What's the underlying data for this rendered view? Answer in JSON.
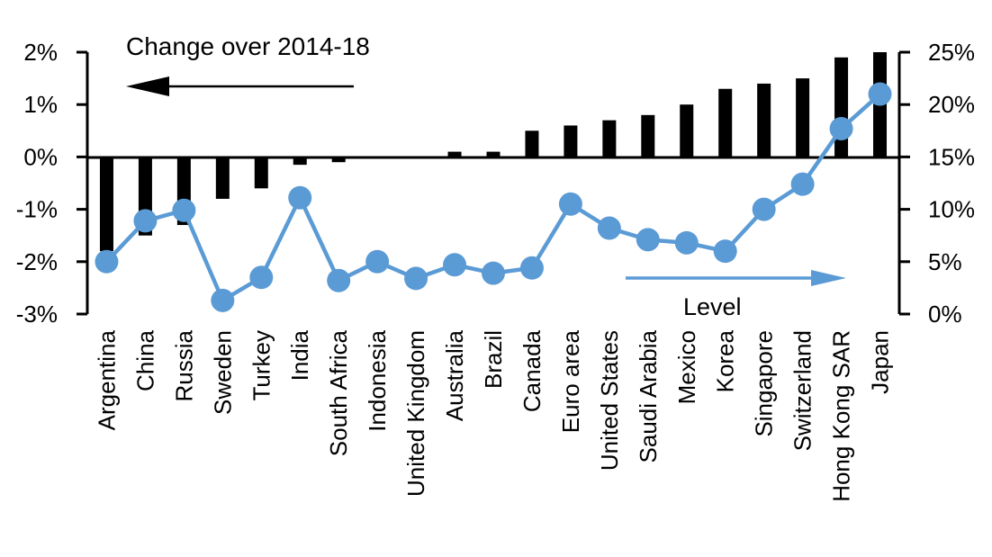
{
  "chart_data": {
    "type": "bar",
    "subtype": "dual-axis bar + line",
    "categories": [
      "Argentina",
      "China",
      "Russia",
      "Sweden",
      "Turkey",
      "India",
      "South Africa",
      "Indonesia",
      "United Kingdom",
      "Australia",
      "Brazil",
      "Canada",
      "Euro area",
      "United States",
      "Saudi Arabia",
      "Mexico",
      "Korea",
      "Singapore",
      "Switzerland",
      "Hong Kong SAR",
      "Japan"
    ],
    "series": [
      {
        "name": "Change over 2014-18",
        "type": "bar",
        "axis": "left",
        "color": "#000000",
        "values": [
          -1.8,
          -1.5,
          -1.3,
          -0.8,
          -0.6,
          -0.15,
          -0.1,
          0,
          0,
          0.1,
          0.1,
          0.5,
          0.6,
          0.7,
          0.8,
          1.0,
          1.3,
          1.4,
          1.5,
          1.9,
          2.0
        ]
      },
      {
        "name": "Level",
        "type": "line",
        "axis": "right",
        "color": "#5B9BD5",
        "values": [
          5.0,
          8.9,
          9.9,
          1.3,
          3.5,
          11.1,
          3.2,
          5.0,
          3.4,
          4.7,
          3.9,
          4.4,
          10.5,
          8.2,
          7.1,
          6.8,
          6.0,
          10.0,
          12.4,
          17.7,
          21.0
        ]
      }
    ],
    "left_axis": {
      "tick_labels": [
        "2%",
        "1%",
        "0%",
        "-1%",
        "-2%",
        "-3%"
      ],
      "tick_values": [
        2,
        1,
        0,
        -1,
        -2,
        -3
      ],
      "range": [
        -3,
        2
      ]
    },
    "right_axis": {
      "tick_labels": [
        "25%",
        "20%",
        "15%",
        "10%",
        "5%",
        "0%"
      ],
      "tick_values": [
        25,
        20,
        15,
        10,
        5,
        0
      ],
      "range": [
        0,
        25
      ]
    },
    "annotations": {
      "change_label": "Change over 2014-18",
      "level_label": "Level",
      "change_arrow_direction": "left",
      "level_arrow_direction": "right"
    },
    "grid": false,
    "legend_position": "none",
    "colors": {
      "bar": "#000000",
      "line": "#5B9BD5"
    }
  }
}
